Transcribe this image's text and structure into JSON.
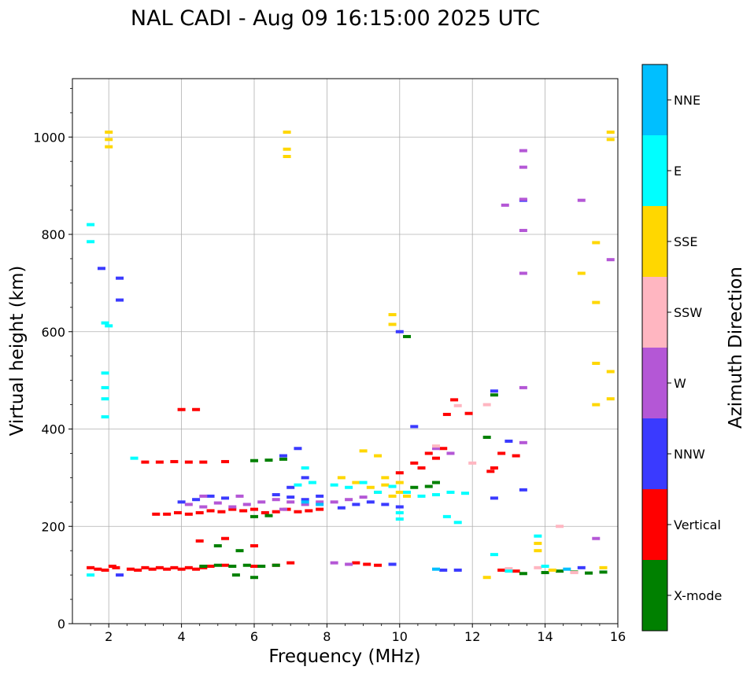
{
  "chart_data": {
    "type": "scatter",
    "title": "NAL CADI - Aug 09 16:15:00 2025 UTC",
    "xlabel": "Frequency (MHz)",
    "ylabel": "Virtual height (km)",
    "xlim": [
      1,
      16
    ],
    "ylim": [
      0,
      1120
    ],
    "xticks": [
      2,
      4,
      6,
      8,
      10,
      12,
      14,
      16
    ],
    "yticks": [
      0,
      200,
      400,
      600,
      800,
      1000
    ],
    "grid": true,
    "colorbar": {
      "title": "Azimuth Direction",
      "categories": [
        {
          "label": "X-mode",
          "color": "#008000"
        },
        {
          "label": "Vertical",
          "color": "#ff0000"
        },
        {
          "label": "NNW",
          "color": "#3a3aff"
        },
        {
          "label": "W",
          "color": "#b457d6"
        },
        {
          "label": "SSW",
          "color": "#ffb6c1"
        },
        {
          "label": "SSE",
          "color": "#ffd700"
        },
        {
          "label": "E",
          "color": "#00ffff"
        },
        {
          "label": "NNE",
          "color": "#00bfff"
        }
      ]
    },
    "series": [
      {
        "name": "Vertical",
        "points": [
          [
            1.5,
            115
          ],
          [
            1.7,
            112
          ],
          [
            1.9,
            110
          ],
          [
            2.1,
            118
          ],
          [
            2.2,
            115
          ],
          [
            2.6,
            112
          ],
          [
            2.8,
            110
          ],
          [
            3.0,
            115
          ],
          [
            3.2,
            112
          ],
          [
            3.4,
            115
          ],
          [
            3.6,
            112
          ],
          [
            3.8,
            115
          ],
          [
            4.0,
            112
          ],
          [
            4.2,
            115
          ],
          [
            4.4,
            112
          ],
          [
            4.6,
            115
          ],
          [
            4.8,
            118
          ],
          [
            5.2,
            120
          ],
          [
            6.0,
            118
          ],
          [
            6.6,
            120
          ],
          [
            7.0,
            125
          ],
          [
            3.3,
            225
          ],
          [
            3.6,
            225
          ],
          [
            3.9,
            228
          ],
          [
            4.2,
            225
          ],
          [
            4.5,
            228
          ],
          [
            4.8,
            232
          ],
          [
            5.1,
            230
          ],
          [
            5.4,
            235
          ],
          [
            5.7,
            232
          ],
          [
            6.0,
            235
          ],
          [
            6.3,
            228
          ],
          [
            6.6,
            230
          ],
          [
            6.9,
            235
          ],
          [
            7.2,
            230
          ],
          [
            7.5,
            232
          ],
          [
            7.8,
            235
          ],
          [
            3.0,
            332
          ],
          [
            3.4,
            332
          ],
          [
            3.8,
            333
          ],
          [
            4.2,
            332
          ],
          [
            4.6,
            332
          ],
          [
            5.2,
            333
          ],
          [
            4.0,
            440
          ],
          [
            4.4,
            440
          ],
          [
            8.8,
            125
          ],
          [
            9.1,
            122
          ],
          [
            9.4,
            120
          ],
          [
            10.0,
            310
          ],
          [
            10.4,
            330
          ],
          [
            10.8,
            350
          ],
          [
            11.2,
            360
          ],
          [
            11.0,
            340
          ],
          [
            10.6,
            320
          ],
          [
            11.3,
            430
          ],
          [
            11.5,
            460
          ],
          [
            11.9,
            432
          ],
          [
            12.6,
            320
          ],
          [
            12.8,
            350
          ],
          [
            13.2,
            345
          ],
          [
            12.5,
            313
          ],
          [
            12.8,
            110
          ],
          [
            13.2,
            108
          ],
          [
            4.5,
            170
          ],
          [
            5.2,
            175
          ],
          [
            6.0,
            160
          ]
        ]
      },
      {
        "name": "X-mode",
        "points": [
          [
            4.6,
            118
          ],
          [
            5.0,
            120
          ],
          [
            5.4,
            118
          ],
          [
            5.8,
            120
          ],
          [
            6.2,
            118
          ],
          [
            6.6,
            120
          ],
          [
            5.5,
            100
          ],
          [
            6.0,
            95
          ],
          [
            6.0,
            335
          ],
          [
            6.4,
            336
          ],
          [
            6.8,
            338
          ],
          [
            6.0,
            220
          ],
          [
            6.4,
            222
          ],
          [
            10.4,
            280
          ],
          [
            10.8,
            282
          ],
          [
            11.0,
            290
          ],
          [
            10.2,
            590
          ],
          [
            12.4,
            383
          ],
          [
            12.6,
            470
          ],
          [
            13.4,
            103
          ],
          [
            14.0,
            105
          ],
          [
            14.4,
            108
          ],
          [
            14.8,
            106
          ],
          [
            15.2,
            104
          ],
          [
            15.6,
            106
          ],
          [
            5.0,
            160
          ],
          [
            5.6,
            150
          ]
        ]
      },
      {
        "name": "NNW",
        "points": [
          [
            2.3,
            100
          ],
          [
            2.3,
            710
          ],
          [
            2.3,
            665
          ],
          [
            1.8,
            730
          ],
          [
            4.0,
            250
          ],
          [
            4.4,
            255
          ],
          [
            4.8,
            262
          ],
          [
            5.2,
            258
          ],
          [
            6.6,
            265
          ],
          [
            7.0,
            260
          ],
          [
            7.4,
            255
          ],
          [
            7.8,
            262
          ],
          [
            7.0,
            280
          ],
          [
            7.4,
            300
          ],
          [
            6.8,
            345
          ],
          [
            7.2,
            360
          ],
          [
            8.4,
            238
          ],
          [
            8.8,
            245
          ],
          [
            9.2,
            250
          ],
          [
            9.6,
            245
          ],
          [
            10.0,
            240
          ],
          [
            10.0,
            600
          ],
          [
            10.4,
            405
          ],
          [
            9.8,
            122
          ],
          [
            11.2,
            110
          ],
          [
            11.6,
            110
          ],
          [
            12.6,
            478
          ],
          [
            12.6,
            258
          ],
          [
            13.0,
            375
          ],
          [
            13.4,
            275
          ],
          [
            13.4,
            870
          ],
          [
            15.0,
            115
          ]
        ]
      },
      {
        "name": "W",
        "points": [
          [
            4.2,
            245
          ],
          [
            4.6,
            240
          ],
          [
            5.0,
            248
          ],
          [
            5.4,
            240
          ],
          [
            5.8,
            245
          ],
          [
            6.2,
            250
          ],
          [
            6.6,
            255
          ],
          [
            7.0,
            250
          ],
          [
            7.4,
            245
          ],
          [
            7.8,
            250
          ],
          [
            4.6,
            262
          ],
          [
            5.6,
            262
          ],
          [
            6.8,
            235
          ],
          [
            8.2,
            125
          ],
          [
            8.6,
            122
          ],
          [
            8.2,
            250
          ],
          [
            8.6,
            255
          ],
          [
            9.0,
            260
          ],
          [
            11.0,
            360
          ],
          [
            11.4,
            350
          ],
          [
            13.4,
            485
          ],
          [
            13.4,
            720
          ],
          [
            13.4,
            808
          ],
          [
            13.4,
            872
          ],
          [
            13.4,
            938
          ],
          [
            13.4,
            972
          ],
          [
            12.9,
            860
          ],
          [
            15.0,
            870
          ],
          [
            15.8,
            748
          ],
          [
            15.4,
            175
          ],
          [
            13.4,
            372
          ]
        ]
      },
      {
        "name": "SSW",
        "points": [
          [
            11.6,
            448
          ],
          [
            12.4,
            450
          ],
          [
            11.0,
            365
          ],
          [
            12.0,
            330
          ],
          [
            13.0,
            113
          ],
          [
            13.8,
            115
          ],
          [
            14.4,
            200
          ],
          [
            14.8,
            105
          ]
        ]
      },
      {
        "name": "SSE",
        "points": [
          [
            2.0,
            980
          ],
          [
            2.0,
            995
          ],
          [
            2.0,
            1010
          ],
          [
            6.9,
            960
          ],
          [
            6.9,
            975
          ],
          [
            6.9,
            1010
          ],
          [
            8.4,
            300
          ],
          [
            8.8,
            290
          ],
          [
            9.2,
            280
          ],
          [
            9.4,
            270
          ],
          [
            9.6,
            285
          ],
          [
            9.8,
            262
          ],
          [
            10.0,
            270
          ],
          [
            10.2,
            262
          ],
          [
            9.6,
            300
          ],
          [
            10.0,
            290
          ],
          [
            9.0,
            355
          ],
          [
            9.4,
            345
          ],
          [
            9.8,
            615
          ],
          [
            9.8,
            635
          ],
          [
            12.4,
            95
          ],
          [
            13.8,
            165
          ],
          [
            13.8,
            150
          ],
          [
            14.2,
            110
          ],
          [
            15.0,
            720
          ],
          [
            15.4,
            660
          ],
          [
            15.4,
            535
          ],
          [
            15.4,
            450
          ],
          [
            15.4,
            783
          ],
          [
            15.8,
            518
          ],
          [
            15.8,
            462
          ],
          [
            15.8,
            995
          ],
          [
            15.8,
            1010
          ],
          [
            15.6,
            115
          ]
        ]
      },
      {
        "name": "E",
        "points": [
          [
            1.5,
            820
          ],
          [
            1.5,
            785
          ],
          [
            1.9,
            618
          ],
          [
            2.0,
            612
          ],
          [
            1.9,
            515
          ],
          [
            1.9,
            485
          ],
          [
            1.9,
            462
          ],
          [
            1.9,
            425
          ],
          [
            1.5,
            100
          ],
          [
            2.7,
            340
          ],
          [
            8.2,
            285
          ],
          [
            8.6,
            280
          ],
          [
            9.0,
            290
          ],
          [
            9.4,
            270
          ],
          [
            9.8,
            282
          ],
          [
            10.2,
            270
          ],
          [
            10.6,
            262
          ],
          [
            11.0,
            265
          ],
          [
            11.4,
            270
          ],
          [
            11.8,
            268
          ],
          [
            10.0,
            228
          ],
          [
            10.0,
            215
          ],
          [
            11.3,
            220
          ],
          [
            11.6,
            208
          ],
          [
            7.2,
            285
          ],
          [
            7.6,
            290
          ],
          [
            7.4,
            320
          ],
          [
            12.6,
            142
          ],
          [
            13.0,
            108
          ],
          [
            13.8,
            180
          ],
          [
            14.0,
            118
          ]
        ]
      },
      {
        "name": "NNE",
        "points": [
          [
            7.4,
            250
          ],
          [
            7.8,
            245
          ],
          [
            11.0,
            112
          ],
          [
            14.6,
            112
          ]
        ]
      }
    ]
  }
}
